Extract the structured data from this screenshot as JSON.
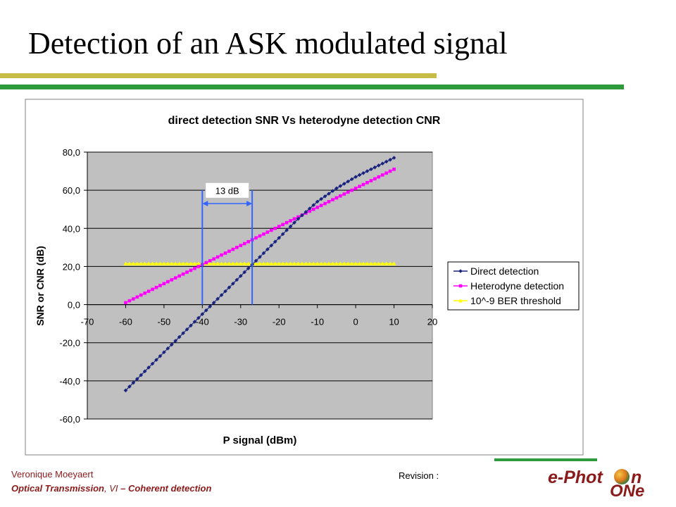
{
  "slide": {
    "title": "Detection of an ASK modulated signal",
    "footer_author": "Veronique Moeyaert",
    "footer_course_a": "Optical Transmission",
    "footer_course_b": ", VI",
    "footer_course_c": " – Coherent detection",
    "revision": "Revision :",
    "logo_text": "e-Phot",
    "logo_n": "n",
    "logo_one": "ONe",
    "colors": {
      "title": "#000000",
      "footer": "#8b1a1a",
      "accent_olive": "#c7bd46",
      "accent_green": "#2f9a3c"
    }
  },
  "chart_data": {
    "type": "line",
    "title": "direct detection SNR Vs heterodyne detection CNR",
    "xlabel": "P signal (dBm)",
    "ylabel": "SNR or CNR (dB)",
    "xlim": [
      -70,
      20
    ],
    "ylim": [
      -60,
      80
    ],
    "xticks": [
      "-70",
      "-60",
      "-50",
      "-40",
      "-30",
      "-20",
      "-10",
      "0",
      "10",
      "20"
    ],
    "yticks": [
      "80,0",
      "60,0",
      "40,0",
      "20,0",
      "0,0",
      "-20,0",
      "-40,0",
      "-60,0"
    ],
    "grid": "horizontal",
    "plot_background": "#c0c0c0",
    "legend_position": "right",
    "series": [
      {
        "name": "Direct detection",
        "color": "#1a237e",
        "marker": "diamond",
        "x": [
          -60,
          -55,
          -50,
          -45,
          -40,
          -35,
          -30,
          -25,
          -20,
          -15,
          -10,
          -5,
          0,
          5,
          10
        ],
        "y": [
          -45,
          -35,
          -25,
          -15,
          -5,
          5,
          15,
          25,
          35,
          45,
          54,
          61,
          67,
          72,
          77
        ]
      },
      {
        "name": "Heterodyne detection",
        "color": "#ff00ff",
        "marker": "square",
        "x": [
          -60,
          -55,
          -50,
          -45,
          -40,
          -35,
          -30,
          -25,
          -20,
          -15,
          -10,
          -5,
          0,
          5,
          10
        ],
        "y": [
          1,
          6,
          11,
          16,
          21,
          26,
          31,
          36,
          41,
          46,
          51,
          56,
          61,
          66,
          71
        ]
      },
      {
        "name": "10^-9 BER threshold",
        "color": "#ffff00",
        "marker": "triangle",
        "x": [
          -60,
          -55,
          -50,
          -45,
          -40,
          -35,
          -30,
          -25,
          -20,
          -15,
          -10,
          -5,
          0,
          5,
          10
        ],
        "y": [
          21.5,
          21.5,
          21.5,
          21.5,
          21.5,
          21.5,
          21.5,
          21.5,
          21.5,
          21.5,
          21.5,
          21.5,
          21.5,
          21.5,
          21.5
        ]
      }
    ],
    "annotation": {
      "text": "13 dB",
      "x_from": -40,
      "x_to": -27,
      "y": 53,
      "color": "#3366ff"
    }
  }
}
